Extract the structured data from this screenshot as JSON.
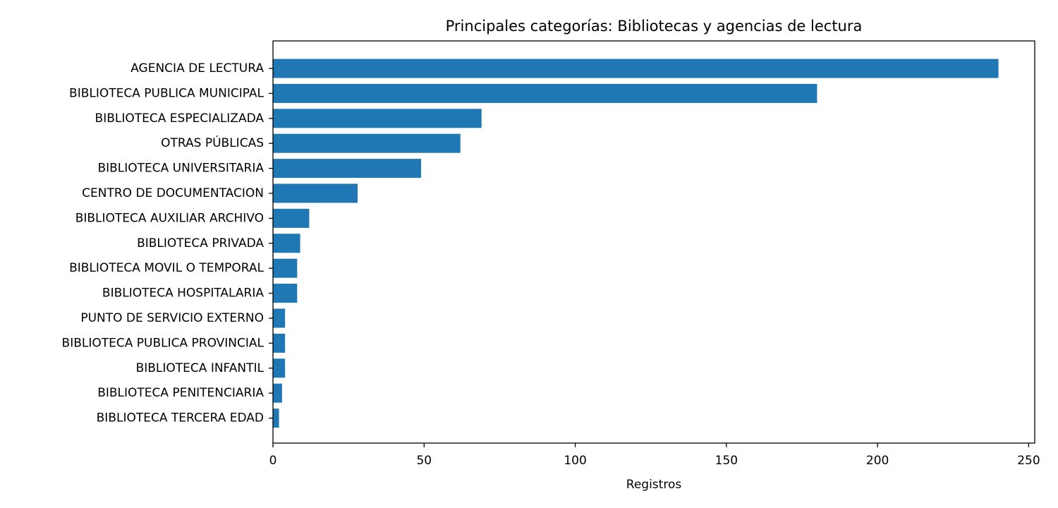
{
  "chart_data": {
    "type": "bar",
    "orientation": "horizontal",
    "title": "Principales categorías: Bibliotecas y agencias de lectura",
    "xlabel": "Registros",
    "ylabel": "",
    "xlim": [
      0,
      252
    ],
    "xticks": [
      0,
      50,
      100,
      150,
      200,
      250
    ],
    "grid": false,
    "bar_color": "#1f77b4",
    "categories": [
      "AGENCIA DE LECTURA",
      "BIBLIOTECA PUBLICA MUNICIPAL",
      "BIBLIOTECA ESPECIALIZADA",
      "OTRAS PÚBLICAS",
      "BIBLIOTECA UNIVERSITARIA",
      "CENTRO DE DOCUMENTACION",
      "BIBLIOTECA AUXILIAR ARCHIVO",
      "BIBLIOTECA PRIVADA",
      "BIBLIOTECA MOVIL O TEMPORAL",
      "BIBLIOTECA HOSPITALARIA",
      "PUNTO DE SERVICIO EXTERNO",
      "BIBLIOTECA PUBLICA PROVINCIAL",
      "BIBLIOTECA INFANTIL",
      "BIBLIOTECA PENITENCIARIA",
      "BIBLIOTECA TERCERA EDAD"
    ],
    "values": [
      240,
      180,
      69,
      62,
      49,
      28,
      12,
      9,
      8,
      8,
      4,
      4,
      4,
      3,
      2
    ]
  }
}
